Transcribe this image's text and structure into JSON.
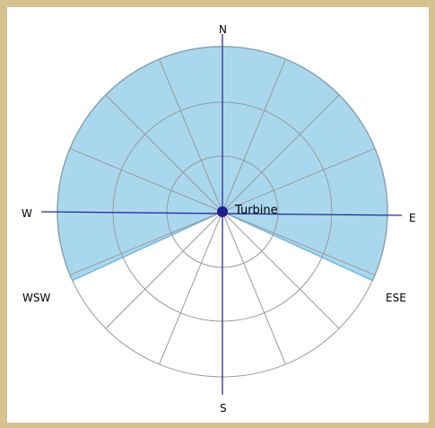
{
  "diagram": {
    "directions": {
      "north": "N",
      "east": "E",
      "south": "S",
      "west": "W",
      "wsw": "WSW",
      "ese": "ESE"
    },
    "center_label": "Turbine",
    "colors": {
      "sector_fill": "#a9d8ee",
      "sector_stroke": "#6fb9dd",
      "grid_line": "#9a9a9a",
      "axis_line": "#2d2d9a",
      "center_dot": "#1d1d8f"
    }
  }
}
